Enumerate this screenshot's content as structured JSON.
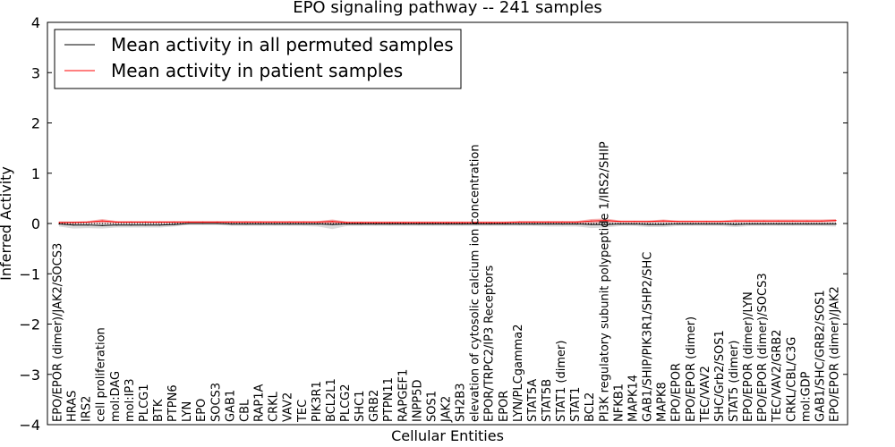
{
  "chart_data": {
    "type": "line",
    "title": "EPO signaling pathway -- 241 samples",
    "xlabel": "Cellular Entities",
    "ylabel": "Inferred Activity",
    "ylim": [
      -4,
      4
    ],
    "yticks": [
      "−4",
      "−3",
      "−2",
      "−1",
      "0",
      "1",
      "2",
      "3",
      "4"
    ],
    "legend_position": "top-left",
    "grid": false,
    "categories": [
      "EPO/EPOR (dimer)/JAK2/SOCS3",
      "HRAS",
      "IRS2",
      "cell proliferation",
      "mol:DAG",
      "mol:IP3",
      "PLCG1",
      "BTK",
      "PTPN6",
      "LYN",
      "EPO",
      "SOCS3",
      "GAB1",
      "CBL",
      "RAP1A",
      "CRKL",
      "VAV2",
      "TEC",
      "PIK3R1",
      "BCL2L1",
      "PLCG2",
      "SHC1",
      "GRB2",
      "PTPN11",
      "RAPGEF1",
      "INPP5D",
      "SOS1",
      "JAK2",
      "SH2B3",
      "elevation of cytosolic calcium ion concentration",
      "EPOR/TRPC2/IP3 Receptors",
      "EPOR",
      "LYN/PLCgamma2",
      "STAT5A",
      "STAT5B",
      "STAT1 (dimer)",
      "STAT1",
      "BCL2",
      "PI3K regulatory subunit polypeptide 1/IRS2/SHIP",
      "NFKB1",
      "MAPK14",
      "GAB1/SHIP/PIK3R1/SHP2/SHC",
      "MAPK8",
      "EPO/EPOR",
      "EPO/EPOR (dimer)",
      "TEC/VAV2",
      "SHC/Grb2/SOS1",
      "STAT5 (dimer)",
      "EPO/EPOR (dimer)/LYN",
      "EPO/EPOR (dimer)/SOCS3",
      "TEC/VAV2/GRB2",
      "CRKL/CBL/C3G",
      "mol:GDP",
      "GAB1/SHC/GRB2/SOS1",
      "EPO/EPOR (dimer)/JAK2"
    ],
    "series": [
      {
        "name": "Mean activity in all permuted samples",
        "color": "#000000",
        "band_color": "#bdbdbd",
        "values": [
          -0.01,
          -0.03,
          -0.03,
          -0.04,
          -0.03,
          -0.03,
          -0.03,
          -0.03,
          -0.02,
          0.0,
          0.0,
          0.0,
          -0.01,
          -0.01,
          -0.01,
          -0.01,
          -0.01,
          -0.01,
          -0.01,
          -0.02,
          -0.01,
          -0.01,
          -0.01,
          -0.01,
          -0.01,
          -0.01,
          -0.01,
          -0.01,
          -0.01,
          -0.01,
          -0.01,
          -0.01,
          -0.01,
          -0.01,
          -0.01,
          -0.01,
          -0.01,
          -0.02,
          -0.02,
          -0.01,
          -0.01,
          -0.02,
          -0.02,
          -0.01,
          -0.01,
          -0.01,
          -0.01,
          -0.02,
          -0.01,
          -0.01,
          -0.01,
          -0.01,
          -0.01,
          -0.01,
          -0.01
        ],
        "band": [
          0.05,
          0.07,
          0.06,
          0.06,
          0.05,
          0.05,
          0.05,
          0.05,
          0.04,
          0.03,
          0.03,
          0.03,
          0.04,
          0.04,
          0.04,
          0.04,
          0.04,
          0.04,
          0.05,
          0.09,
          0.04,
          0.04,
          0.04,
          0.04,
          0.04,
          0.04,
          0.04,
          0.04,
          0.04,
          0.04,
          0.04,
          0.04,
          0.04,
          0.04,
          0.05,
          0.05,
          0.05,
          0.07,
          0.06,
          0.04,
          0.04,
          0.05,
          0.05,
          0.04,
          0.04,
          0.04,
          0.04,
          0.05,
          0.04,
          0.04,
          0.04,
          0.04,
          0.04,
          0.04,
          0.05
        ]
      },
      {
        "name": "Mean activity in patient samples",
        "color": "#ff0000",
        "band_color": "#f08080",
        "values": [
          0.02,
          0.02,
          0.03,
          0.05,
          0.03,
          0.03,
          0.03,
          0.03,
          0.03,
          0.03,
          0.03,
          0.03,
          0.03,
          0.03,
          0.03,
          0.03,
          0.03,
          0.03,
          0.03,
          0.04,
          0.02,
          0.02,
          0.02,
          0.02,
          0.02,
          0.02,
          0.02,
          0.02,
          0.02,
          0.02,
          0.02,
          0.02,
          0.03,
          0.03,
          0.03,
          0.03,
          0.03,
          0.05,
          0.06,
          0.04,
          0.04,
          0.04,
          0.05,
          0.04,
          0.04,
          0.04,
          0.04,
          0.05,
          0.05,
          0.05,
          0.05,
          0.05,
          0.05,
          0.05,
          0.06
        ],
        "band": [
          0.02,
          0.02,
          0.02,
          0.04,
          0.02,
          0.02,
          0.02,
          0.02,
          0.02,
          0.02,
          0.02,
          0.02,
          0.02,
          0.02,
          0.02,
          0.02,
          0.02,
          0.02,
          0.02,
          0.04,
          0.02,
          0.02,
          0.02,
          0.02,
          0.02,
          0.02,
          0.02,
          0.02,
          0.02,
          0.02,
          0.02,
          0.02,
          0.02,
          0.02,
          0.02,
          0.02,
          0.02,
          0.04,
          0.04,
          0.02,
          0.02,
          0.02,
          0.03,
          0.02,
          0.02,
          0.02,
          0.02,
          0.03,
          0.03,
          0.03,
          0.03,
          0.03,
          0.03,
          0.03,
          0.03
        ]
      }
    ]
  }
}
